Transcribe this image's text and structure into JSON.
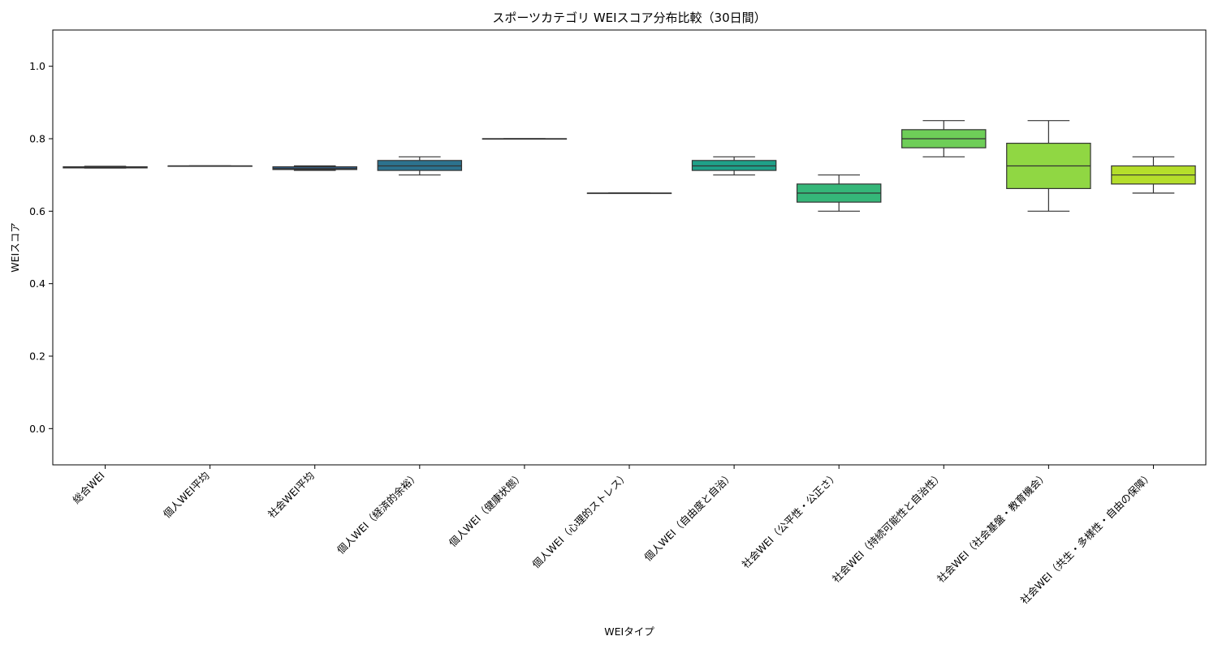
{
  "chart_data": {
    "type": "box",
    "title": "スポーツカテゴリ WEIスコア分布比較（30日間）",
    "xlabel": "WEIタイプ",
    "ylabel": "WEIスコア",
    "ylim": [
      -0.1,
      1.1
    ],
    "yticks": [
      "0.0",
      "0.2",
      "0.4",
      "0.6",
      "0.8",
      "1.0"
    ],
    "grid": false,
    "categories": [
      "総合WEI",
      "個人WEI平均",
      "社会WEI平均",
      "個人WEI（経済的余裕）",
      "個人WEI（健康状態）",
      "個人WEI（心理的ストレス）",
      "個人WEI（自由度と自治）",
      "社会WEI（公平性・公正さ）",
      "社会WEI（持続可能性と自治性）",
      "社会WEI（社会基盤・教育機会）",
      "社会WEI（共生・多様性・自由の保障）"
    ],
    "boxes": [
      {
        "whisker_low": 0.719,
        "q1": 0.7195,
        "median": 0.721,
        "q3": 0.7225,
        "whisker_high": 0.724,
        "color": "#46327e"
      },
      {
        "whisker_low": 0.725,
        "q1": 0.725,
        "median": 0.725,
        "q3": 0.725,
        "whisker_high": 0.725,
        "color": "#3b528b"
      },
      {
        "whisker_low": 0.7125,
        "q1": 0.715,
        "median": 0.7175,
        "q3": 0.7225,
        "whisker_high": 0.725,
        "color": "#33638d"
      },
      {
        "whisker_low": 0.7,
        "q1": 0.7125,
        "median": 0.725,
        "q3": 0.74,
        "whisker_high": 0.75,
        "color": "#2c728e"
      },
      {
        "whisker_low": 0.8,
        "q1": 0.8,
        "median": 0.8,
        "q3": 0.8,
        "whisker_high": 0.8,
        "color": "#26828e"
      },
      {
        "whisker_low": 0.65,
        "q1": 0.65,
        "median": 0.65,
        "q3": 0.65,
        "whisker_high": 0.65,
        "color": "#21918c"
      },
      {
        "whisker_low": 0.7,
        "q1": 0.7125,
        "median": 0.725,
        "q3": 0.74,
        "whisker_high": 0.75,
        "color": "#1fa088"
      },
      {
        "whisker_low": 0.6,
        "q1": 0.625,
        "median": 0.65,
        "q3": 0.675,
        "whisker_high": 0.7,
        "color": "#35b779"
      },
      {
        "whisker_low": 0.75,
        "q1": 0.775,
        "median": 0.8,
        "q3": 0.825,
        "whisker_high": 0.85,
        "color": "#6ece58"
      },
      {
        "whisker_low": 0.6,
        "q1": 0.6625,
        "median": 0.725,
        "q3": 0.7875,
        "whisker_high": 0.85,
        "color": "#90d743"
      },
      {
        "whisker_low": 0.65,
        "q1": 0.675,
        "median": 0.7,
        "q3": 0.725,
        "whisker_high": 0.75,
        "color": "#b5de2b"
      }
    ]
  }
}
